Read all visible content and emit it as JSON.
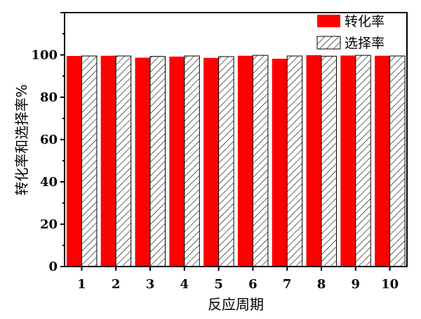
{
  "chart_data": {
    "type": "bar",
    "categories": [
      "1",
      "2",
      "3",
      "4",
      "5",
      "6",
      "7",
      "8",
      "9",
      "10"
    ],
    "series": [
      {
        "name": "转化率",
        "values": [
          99.5,
          99.6,
          98.7,
          99.2,
          98.6,
          99.6,
          98.2,
          99.9,
          99.7,
          99.6
        ],
        "color": "#ff0000",
        "pattern": "solid"
      },
      {
        "name": "选择率",
        "values": [
          99.5,
          99.5,
          99.3,
          99.5,
          99.2,
          99.8,
          99.5,
          99.4,
          99.8,
          99.5
        ],
        "color": "#ffffff",
        "pattern": "diagonal-hatch"
      }
    ],
    "xlabel": "反应周期",
    "ylabel": "转化率和选择率%",
    "ylim": [
      0,
      120
    ],
    "yticks": [
      0,
      20,
      40,
      60,
      80,
      100
    ],
    "grid": false,
    "legend": "top-right"
  }
}
